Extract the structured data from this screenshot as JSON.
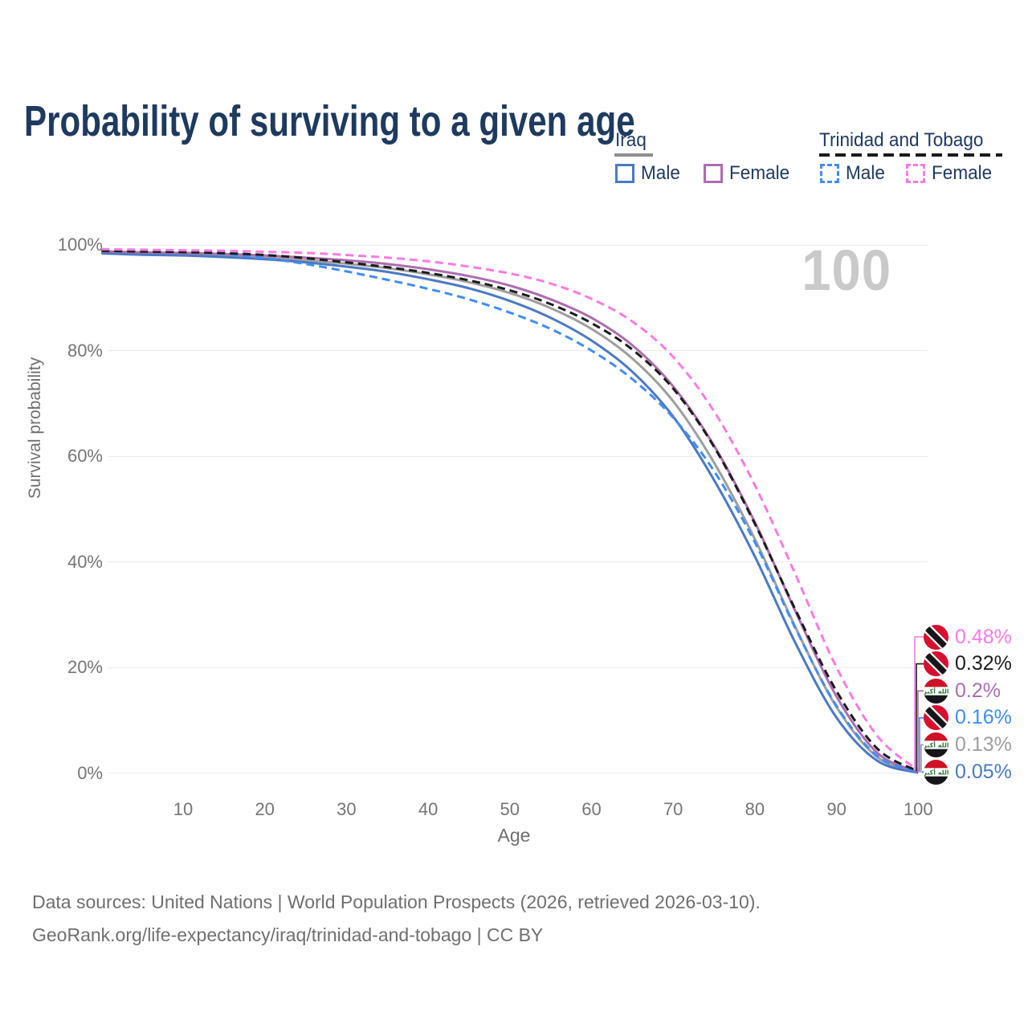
{
  "title": "Probability of surviving to a given age",
  "legend": {
    "groups": [
      {
        "label": "Iraq",
        "underline_style": "solid",
        "underline_color": "#8f8f8f",
        "items": [
          {
            "label": "Male",
            "color": "#4a79c5",
            "dashed": false
          },
          {
            "label": "Female",
            "color": "#ad6cb0",
            "dashed": false
          }
        ]
      },
      {
        "label": "Trinidad and Tobago",
        "underline_style": "dashed",
        "underline_color": "#1a1a1a",
        "items": [
          {
            "label": "Male",
            "color": "#3f8df3",
            "dashed": true
          },
          {
            "label": "Female",
            "color": "#fb7ae3",
            "dashed": true
          }
        ]
      }
    ]
  },
  "chart_data": {
    "type": "line",
    "title": "Probability of surviving to a given age",
    "xlabel": "Age",
    "ylabel": "Survival probability",
    "watermark": "100",
    "xlim": [
      0,
      100
    ],
    "ylim": [
      0,
      100
    ],
    "grid": "horizontal",
    "x_ticks": [
      10,
      20,
      30,
      40,
      50,
      60,
      70,
      80,
      90,
      100
    ],
    "y_ticks": [
      0,
      20,
      40,
      60,
      80,
      100
    ],
    "y_tick_suffix": "%",
    "x": [
      0,
      5,
      10,
      15,
      20,
      25,
      30,
      35,
      40,
      45,
      50,
      55,
      60,
      65,
      70,
      75,
      80,
      85,
      90,
      95,
      100
    ],
    "series": [
      {
        "name": "Trinidad and Tobago Female",
        "flag": "trinidad-and-tobago",
        "color": "#fb7ae3",
        "dashed": true,
        "end_label": "0.48%",
        "values": [
          99.2,
          99.1,
          99.0,
          98.9,
          98.7,
          98.5,
          98.1,
          97.6,
          96.9,
          95.9,
          94.6,
          92.7,
          89.8,
          85.5,
          78.8,
          68.5,
          54.5,
          37.5,
          20.0,
          7.0,
          0.48
        ]
      },
      {
        "name": "Trinidad and Tobago Both sexes",
        "flag": "trinidad-and-tobago",
        "color": "#1c1c1c",
        "dashed": true,
        "end_label": "0.32%",
        "values": [
          98.9,
          98.75,
          98.65,
          98.45,
          98.1,
          97.5,
          96.7,
          95.8,
          94.7,
          93.3,
          91.4,
          88.8,
          85.2,
          80.2,
          72.8,
          61.8,
          47.2,
          30.8,
          15.5,
          4.6,
          0.32
        ]
      },
      {
        "name": "Iraq Female",
        "flag": "iraq",
        "color": "#ad6cb0",
        "dashed": false,
        "end_label": "0.2%",
        "values": [
          98.8,
          98.6,
          98.5,
          98.3,
          98.0,
          97.6,
          97.1,
          96.4,
          95.4,
          94.1,
          92.3,
          89.7,
          86.2,
          81.0,
          73.2,
          62.0,
          47.5,
          30.5,
          14.5,
          3.8,
          0.2
        ]
      },
      {
        "name": "Trinidad and Tobago Male",
        "flag": "trinidad-and-tobago",
        "color": "#3f8df3",
        "dashed": true,
        "end_label": "0.16%",
        "values": [
          99.0,
          98.85,
          98.7,
          98.3,
          97.5,
          96.4,
          95.0,
          93.4,
          91.7,
          89.7,
          87.2,
          84.1,
          80.0,
          74.6,
          67.3,
          57.2,
          43.7,
          27.3,
          12.7,
          3.2,
          0.16
        ]
      },
      {
        "name": "Iraq Both sexes",
        "flag": "iraq",
        "color": "#9e9e9e",
        "dashed": false,
        "end_label": "0.13%",
        "values": [
          98.6,
          98.35,
          98.2,
          98.0,
          97.6,
          97.1,
          96.45,
          95.6,
          94.45,
          92.95,
          90.9,
          88.05,
          84.1,
          78.5,
          70.4,
          58.8,
          44.3,
          27.5,
          12.5,
          3.0,
          0.13
        ]
      },
      {
        "name": "Iraq Male",
        "flag": "iraq",
        "color": "#4a79c5",
        "dashed": false,
        "end_label": "0.05%",
        "values": [
          98.4,
          98.15,
          98.0,
          97.7,
          97.3,
          96.7,
          95.9,
          94.9,
          93.5,
          91.8,
          89.4,
          86.2,
          81.9,
          76.0,
          67.5,
          55.5,
          41.0,
          24.5,
          10.5,
          2.3,
          0.05
        ]
      }
    ]
  },
  "footer": {
    "line1": "Data sources: United Nations | World Population Prospects (2026, retrieved 2026-03-10).",
    "line2": "GeoRank.org/life-expectancy/iraq/trinidad-and-tobago | CC BY"
  }
}
